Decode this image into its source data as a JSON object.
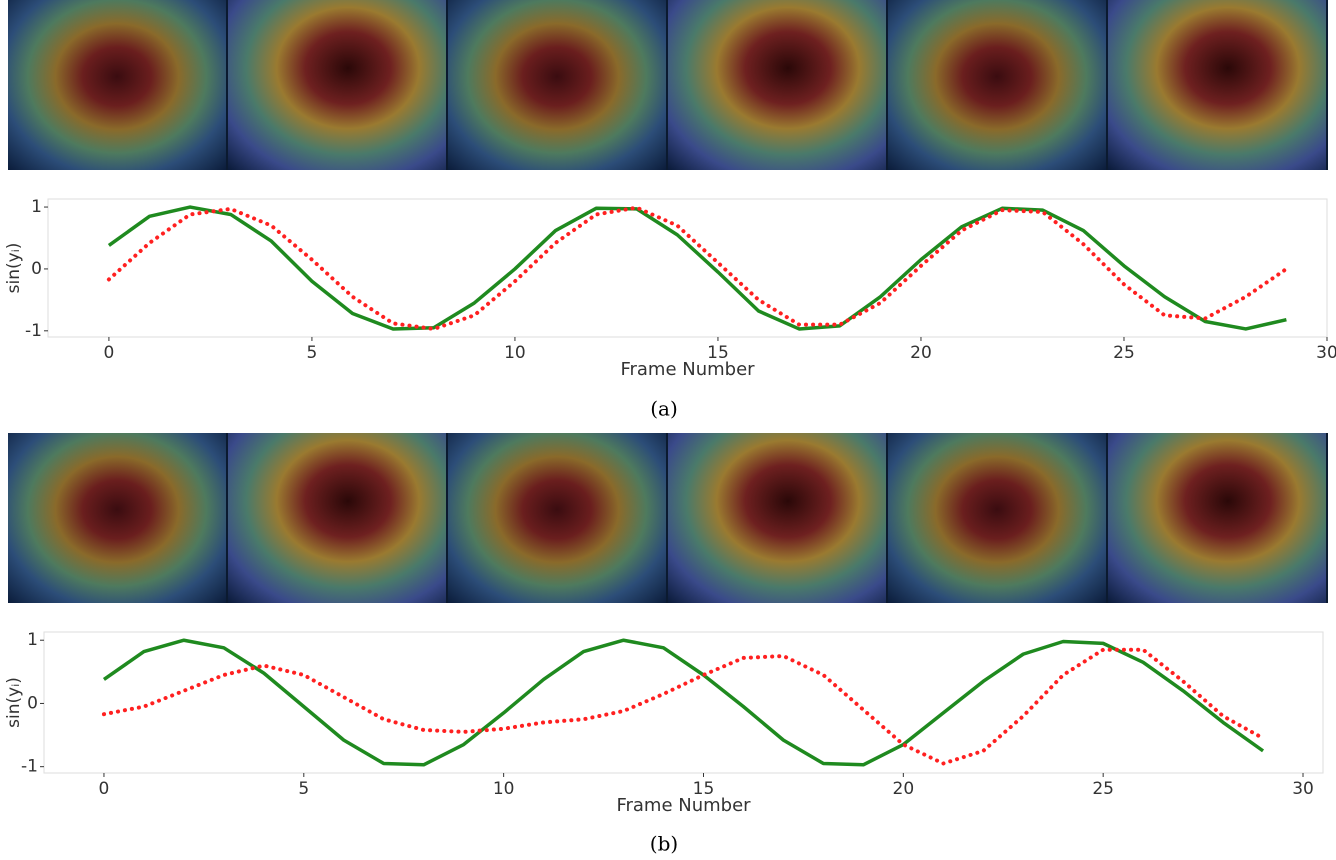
{
  "chart_data": [
    {
      "type": "line",
      "x_label": "Frame Number",
      "y_label": "sin(yᵢ)",
      "x": [
        0,
        1,
        2,
        3,
        4,
        5,
        6,
        7,
        8,
        9,
        10,
        11,
        12,
        13,
        14,
        15,
        16,
        17,
        18,
        19,
        20,
        21,
        22,
        23,
        24,
        25,
        26,
        27,
        28,
        29
      ],
      "xlim": [
        -1.5,
        30
      ],
      "ylim": [
        -1.1,
        1.13
      ],
      "xticks": [
        0,
        5,
        10,
        15,
        20,
        25,
        30
      ],
      "yticks": [
        -1,
        0,
        1
      ],
      "series": [
        {
          "color": "#1f8a1f",
          "linestyle": "solid",
          "values": [
            0.38,
            0.85,
            1.0,
            0.88,
            0.45,
            -0.2,
            -0.72,
            -0.97,
            -0.95,
            -0.55,
            0.0,
            0.62,
            0.98,
            0.97,
            0.55,
            -0.05,
            -0.68,
            -0.97,
            -0.92,
            -0.45,
            0.15,
            0.68,
            0.98,
            0.95,
            0.62,
            0.05,
            -0.45,
            -0.85,
            -0.97,
            -0.82
          ]
        },
        {
          "color": "#ff2020",
          "linestyle": "dotted",
          "values": [
            -0.17,
            0.42,
            0.88,
            0.97,
            0.7,
            0.15,
            -0.45,
            -0.88,
            -0.97,
            -0.75,
            -0.2,
            0.42,
            0.88,
            0.99,
            0.7,
            0.1,
            -0.5,
            -0.9,
            -0.9,
            -0.55,
            0.05,
            0.62,
            0.95,
            0.92,
            0.4,
            -0.25,
            -0.75,
            -0.8,
            -0.45,
            0.0
          ]
        }
      ]
    },
    {
      "type": "line",
      "x_label": "Frame Number",
      "y_label": "sin(yᵢ)",
      "x": [
        0,
        1,
        2,
        3,
        4,
        5,
        6,
        7,
        8,
        9,
        10,
        11,
        12,
        13,
        14,
        15,
        16,
        17,
        18,
        19,
        20,
        21,
        22,
        23,
        24,
        25,
        26,
        27,
        28,
        29
      ],
      "xlim": [
        -1.5,
        30.5
      ],
      "ylim": [
        -1.1,
        1.13
      ],
      "xticks": [
        0,
        5,
        10,
        15,
        20,
        25,
        30
      ],
      "yticks": [
        -1,
        0,
        1
      ],
      "series": [
        {
          "color": "#1f8a1f",
          "linestyle": "solid",
          "values": [
            0.38,
            0.82,
            1.0,
            0.88,
            0.48,
            -0.05,
            -0.58,
            -0.95,
            -0.97,
            -0.65,
            -0.15,
            0.38,
            0.82,
            1.0,
            0.88,
            0.45,
            -0.05,
            -0.58,
            -0.95,
            -0.97,
            -0.65,
            -0.15,
            0.35,
            0.78,
            0.98,
            0.95,
            0.65,
            0.2,
            -0.3,
            -0.75
          ]
        },
        {
          "color": "#ff2020",
          "linestyle": "dotted",
          "values": [
            -0.17,
            -0.05,
            0.2,
            0.45,
            0.6,
            0.45,
            0.1,
            -0.25,
            -0.42,
            -0.45,
            -0.4,
            -0.3,
            -0.25,
            -0.12,
            0.15,
            0.45,
            0.72,
            0.75,
            0.45,
            -0.1,
            -0.65,
            -0.95,
            -0.75,
            -0.2,
            0.45,
            0.85,
            0.85,
            0.35,
            -0.2,
            -0.55
          ]
        }
      ]
    }
  ],
  "captions": [
    "(a)",
    "(b)"
  ]
}
